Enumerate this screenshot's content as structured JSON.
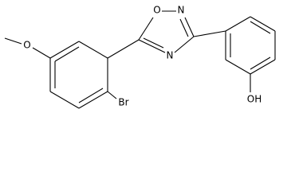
{
  "atoms": [
    {
      "label": "O"
    },
    {
      "label": "O"
    },
    {
      "label": "N"
    },
    {
      "label": "N"
    },
    {
      "label": "Br"
    },
    {
      "label": "OH"
    }
  ]
}
